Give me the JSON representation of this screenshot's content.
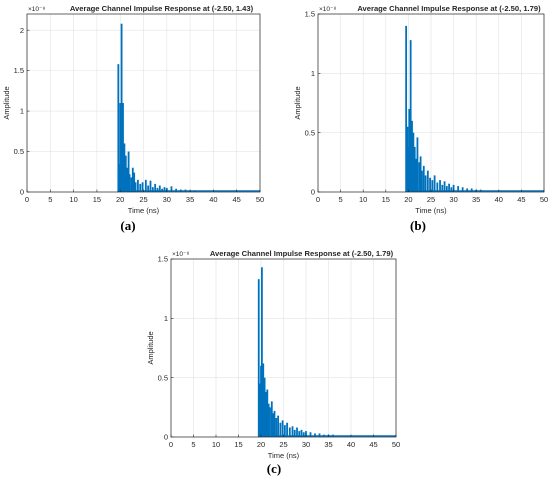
{
  "panels": [
    {
      "label": "(a)",
      "ymax": 2.2e-08
    },
    {
      "label": "(b)",
      "ymax": 1.5e-08
    },
    {
      "label": "(c)",
      "ymax": 1.5e-08
    }
  ],
  "chart_data": [
    {
      "type": "bar",
      "title": "Average Channel Impulse Response at (-2.50, 1.43)",
      "xlabel": "Time (ns)",
      "ylabel": "Amplitude",
      "y_exponent": "×10⁻⁸",
      "xlim": [
        0,
        50
      ],
      "ylim": [
        0,
        2.2e-08
      ],
      "xticks": [
        0,
        5,
        10,
        15,
        20,
        25,
        30,
        35,
        40,
        45,
        50
      ],
      "yticks": [
        0,
        0.5,
        1,
        1.5,
        2
      ],
      "grid": true,
      "color": "#0072BD",
      "x": [
        19.6,
        19.8,
        20.0,
        20.3,
        20.6,
        20.9,
        21.2,
        21.5,
        21.8,
        22.0,
        22.4,
        22.7,
        23.0,
        23.3,
        23.8,
        24.3,
        24.8,
        25.5,
        26.0,
        26.5,
        27.0,
        27.5,
        28.0,
        28.5,
        29.0,
        29.5,
        30.0,
        31.0,
        32.0,
        33.0,
        34.0,
        35.0,
        36.0
      ],
      "values": [
        1.58,
        0.35,
        1.1,
        2.08,
        1.1,
        0.6,
        0.45,
        0.3,
        0.5,
        0.22,
        0.18,
        0.3,
        0.24,
        0.12,
        0.15,
        0.1,
        0.12,
        0.15,
        0.08,
        0.14,
        0.06,
        0.1,
        0.05,
        0.08,
        0.04,
        0.06,
        0.05,
        0.07,
        0.04,
        0.03,
        0.03,
        0.02,
        0.02
      ]
    },
    {
      "type": "bar",
      "title": "Average Channel Impulse Response at (-2.50, 1.79)",
      "xlabel": "Time (ns)",
      "ylabel": "Amplitude",
      "y_exponent": "×10⁻⁸",
      "xlim": [
        0,
        50
      ],
      "ylim": [
        0,
        1.5e-08
      ],
      "xticks": [
        0,
        5,
        10,
        15,
        20,
        25,
        30,
        35,
        40,
        45,
        50
      ],
      "yticks": [
        0,
        0.5,
        1,
        1.5
      ],
      "grid": true,
      "color": "#0072BD",
      "x": [
        19.5,
        19.8,
        20.0,
        20.2,
        20.5,
        20.8,
        21.1,
        21.4,
        21.7,
        22.0,
        22.4,
        22.7,
        23.0,
        23.4,
        23.8,
        24.3,
        24.8,
        25.3,
        25.8,
        26.4,
        27.0,
        27.5,
        28.0,
        28.5,
        29.0,
        29.5,
        30.0,
        31.0,
        32.0,
        33.0,
        34.0,
        35.0,
        36.0
      ],
      "values": [
        1.4,
        0.55,
        0.38,
        0.7,
        1.28,
        0.6,
        0.5,
        0.38,
        0.28,
        0.46,
        0.25,
        0.3,
        0.18,
        0.22,
        0.14,
        0.18,
        0.12,
        0.1,
        0.14,
        0.08,
        0.1,
        0.06,
        0.09,
        0.05,
        0.07,
        0.04,
        0.06,
        0.05,
        0.04,
        0.03,
        0.03,
        0.02,
        0.02
      ]
    },
    {
      "type": "bar",
      "title": "Average Channel Impulse Response at (-2.50, 1.79)",
      "xlabel": "Time (ns)",
      "ylabel": "Amplitude",
      "y_exponent": "×10⁻⁸",
      "xlim": [
        0,
        50
      ],
      "ylim": [
        0,
        1.5e-08
      ],
      "xticks": [
        0,
        5,
        10,
        15,
        20,
        25,
        30,
        35,
        40,
        45,
        50
      ],
      "yticks": [
        0,
        0.5,
        1,
        1.5
      ],
      "grid": true,
      "color": "#0072BD",
      "x": [
        19.5,
        19.8,
        20.0,
        20.2,
        20.5,
        20.8,
        21.1,
        21.4,
        21.7,
        22.0,
        22.4,
        22.7,
        23.0,
        23.4,
        23.8,
        24.3,
        24.8,
        25.3,
        25.8,
        26.4,
        27.0,
        27.5,
        28.0,
        28.5,
        29.0,
        29.5,
        30.0,
        31.0,
        32.0,
        33.0,
        34.0,
        35.0,
        36.0
      ],
      "values": [
        1.33,
        0.45,
        0.6,
        1.43,
        0.62,
        0.5,
        0.38,
        0.4,
        0.28,
        0.25,
        0.3,
        0.2,
        0.22,
        0.16,
        0.18,
        0.12,
        0.14,
        0.1,
        0.12,
        0.08,
        0.09,
        0.06,
        0.08,
        0.05,
        0.06,
        0.04,
        0.05,
        0.04,
        0.03,
        0.03,
        0.02,
        0.02,
        0.02
      ]
    }
  ]
}
